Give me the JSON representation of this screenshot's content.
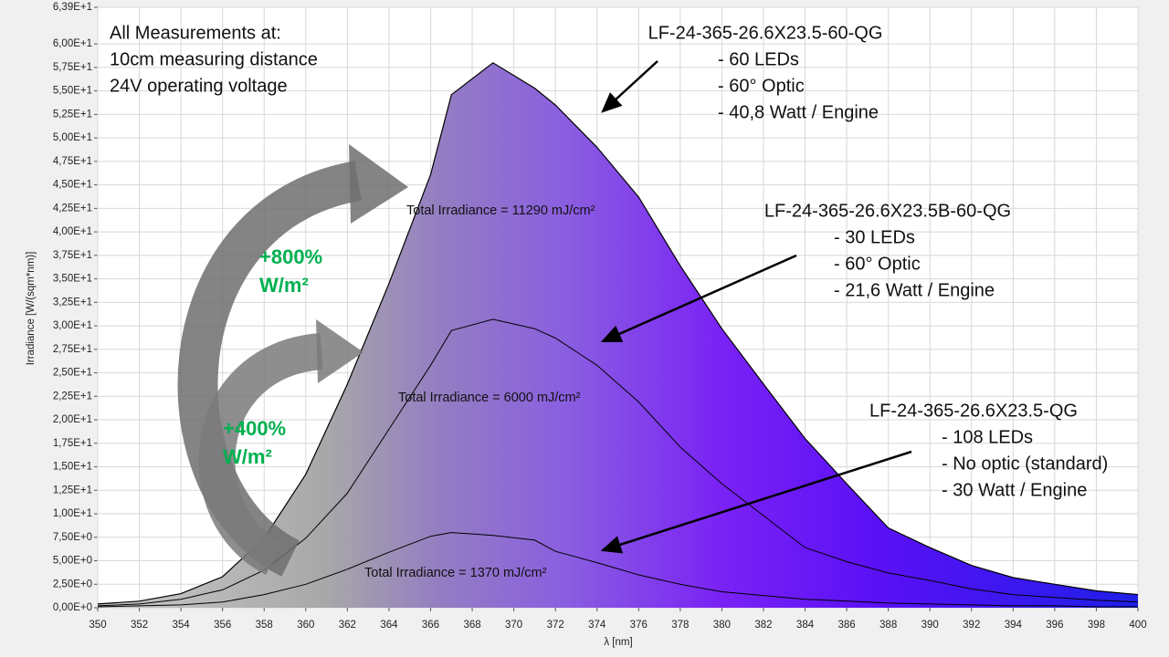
{
  "chart_data": {
    "type": "line",
    "x_label": "λ [nm]",
    "y_label": "Irradiance [W/(sqm*nm)]",
    "grid": true,
    "x": [
      350,
      352,
      354,
      356,
      358,
      360,
      362,
      364,
      366,
      367,
      369,
      371,
      372,
      374,
      376,
      378,
      380,
      382,
      384,
      386,
      388,
      390,
      392,
      394,
      396,
      398,
      400
    ],
    "series": [
      {
        "name": "LF-24-365-26.6X23.5-60-QG",
        "color": "#000000",
        "fill": true,
        "details": [
          "- 60 LEDs",
          "- 60° Optic",
          "- 40,8 Watt / Engine"
        ],
        "total": "Total Irradiance = 11290 mJ/cm²",
        "values": [
          0.4,
          0.7,
          1.5,
          3.3,
          7.4,
          14.2,
          23.8,
          34.5,
          46.1,
          54.6,
          58.0,
          55.3,
          53.5,
          49,
          43.7,
          36.4,
          29.7,
          23.8,
          18.0,
          13.2,
          8.5,
          6.4,
          4.5,
          3.2,
          2.5,
          1.8,
          1.4
        ]
      },
      {
        "name": "LF-24-365-26.6X23.5B-60-QG",
        "color": "#000000",
        "fill": false,
        "details": [
          "- 30 LEDs",
          "- 60° Optic",
          "- 21,6 Watt / Engine"
        ],
        "total": "Total Irradiance = 6000 mJ/cm²",
        "values": [
          0.2,
          0.4,
          0.9,
          1.9,
          4.0,
          7.4,
          12.2,
          19.0,
          25.8,
          29.5,
          30.7,
          29.7,
          28.7,
          25.8,
          21.9,
          17.1,
          13.2,
          9.8,
          6.4,
          4.9,
          3.7,
          2.9,
          2.0,
          1.4,
          1.1,
          0.8,
          0.6
        ]
      },
      {
        "name": "LF-24-365-26.6X23.5-QG",
        "color": "#000000",
        "fill": false,
        "details": [
          "- 108 LEDs",
          "- No optic (standard)",
          "- 30 Watt / Engine"
        ],
        "total": "Total Irradiance = 1370 mJ/cm²",
        "values": [
          0.1,
          0.2,
          0.3,
          0.6,
          1.4,
          2.5,
          4.1,
          5.9,
          7.6,
          8.0,
          7.7,
          7.2,
          6.0,
          4.8,
          3.5,
          2.5,
          1.7,
          1.3,
          0.9,
          0.7,
          0.5,
          0.4,
          0.3,
          0.2,
          0.2,
          0.1,
          0.1
        ]
      }
    ],
    "notes": [
      "All Measurements at:",
      "10cm measuring distance",
      "24V operating voltage"
    ],
    "gains": [
      {
        "percent": "+800%",
        "unit": "W/m²"
      },
      {
        "percent": "+400%",
        "unit": "W/m²"
      }
    ],
    "gain_color": "#00b050",
    "xlim": [
      350,
      400
    ],
    "xticks": [
      350,
      352,
      354,
      356,
      358,
      360,
      362,
      364,
      366,
      368,
      370,
      372,
      374,
      376,
      378,
      380,
      382,
      384,
      386,
      388,
      390,
      392,
      394,
      396,
      398,
      400
    ],
    "ylim": [
      0,
      63.9
    ],
    "yticks": [
      {
        "value": 0,
        "label": "0,00E+0"
      },
      {
        "value": 2.5,
        "label": "2,50E+0"
      },
      {
        "value": 5,
        "label": "5,00E+0"
      },
      {
        "value": 7.5,
        "label": "7,50E+0"
      },
      {
        "value": 10,
        "label": "1,00E+1"
      },
      {
        "value": 12.5,
        "label": "1,25E+1"
      },
      {
        "value": 15,
        "label": "1,50E+1"
      },
      {
        "value": 17.5,
        "label": "1,75E+1"
      },
      {
        "value": 20,
        "label": "2,00E+1"
      },
      {
        "value": 22.5,
        "label": "2,25E+1"
      },
      {
        "value": 25,
        "label": "2,50E+1"
      },
      {
        "value": 27.5,
        "label": "2,75E+1"
      },
      {
        "value": 30,
        "label": "3,00E+1"
      },
      {
        "value": 32.5,
        "label": "3,25E+1"
      },
      {
        "value": 35,
        "label": "3,50E+1"
      },
      {
        "value": 37.5,
        "label": "3,75E+1"
      },
      {
        "value": 40,
        "label": "4,00E+1"
      },
      {
        "value": 42.5,
        "label": "4,25E+1"
      },
      {
        "value": 45,
        "label": "4,50E+1"
      },
      {
        "value": 47.5,
        "label": "4,75E+1"
      },
      {
        "value": 50,
        "label": "5,00E+1"
      },
      {
        "value": 52.5,
        "label": "5,25E+1"
      },
      {
        "value": 55,
        "label": "5,50E+1"
      },
      {
        "value": 57.5,
        "label": "5,75E+1"
      },
      {
        "value": 60,
        "label": "6,00E+1"
      },
      {
        "value": 63.9,
        "label": "6,39E+1"
      }
    ]
  }
}
